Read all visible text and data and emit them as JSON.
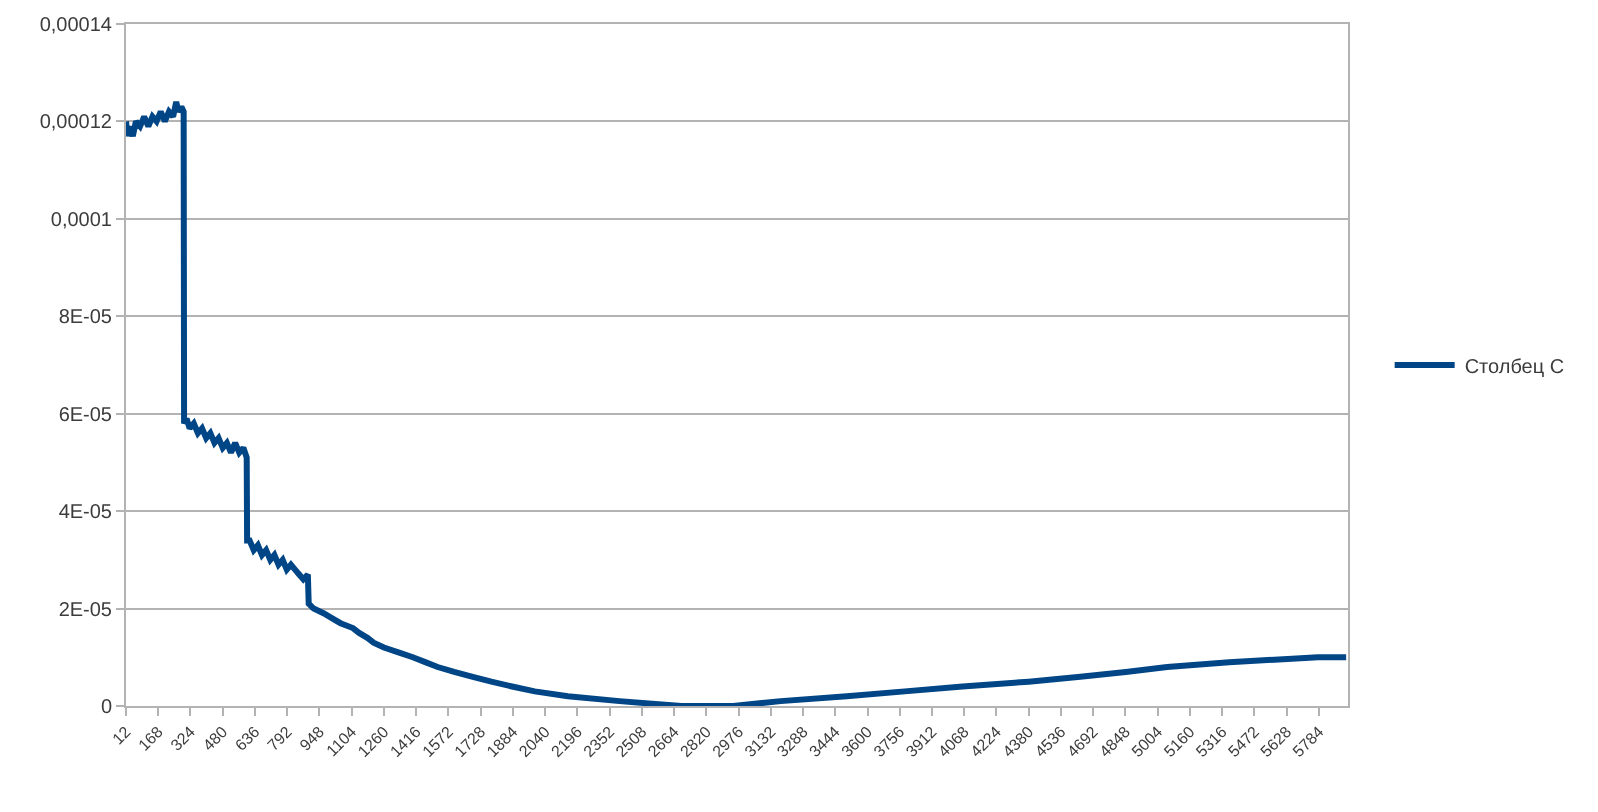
{
  "chart_data": {
    "type": "line",
    "x": [
      12,
      20,
      30,
      45,
      60,
      80,
      100,
      120,
      140,
      160,
      180,
      200,
      220,
      240,
      255,
      265,
      280,
      291,
      293,
      305,
      320,
      340,
      360,
      380,
      400,
      420,
      440,
      460,
      480,
      500,
      520,
      540,
      560,
      580,
      596,
      598,
      610,
      630,
      650,
      670,
      690,
      710,
      730,
      750,
      770,
      790,
      810,
      830,
      850,
      870,
      892,
      896,
      920,
      970,
      1010,
      1050,
      1110,
      1140,
      1180,
      1210,
      1260,
      1330,
      1400,
      1460,
      1520,
      1600,
      1690,
      1780,
      1880,
      1990,
      2150,
      2400,
      2700,
      2950,
      3180,
      3500,
      3780,
      4060,
      4380,
      4630,
      4850,
      5050,
      5350,
      5780,
      5916
    ],
    "series": [
      {
        "name": "Столбец C",
        "color": "#004586",
        "values": [
          0.00012,
          0.000117,
          0.000119,
          0.000117,
          0.00012,
          0.000119,
          0.000121,
          0.000119,
          0.000121,
          0.00012,
          0.000122,
          0.00012,
          0.000122,
          0.000121,
          0.000124,
          0.000122,
          0.000123,
          0.000122,
          5.8e-05,
          5.9e-05,
          5.7e-05,
          5.8e-05,
          5.6e-05,
          5.7e-05,
          5.5e-05,
          5.6e-05,
          5.4e-05,
          5.5e-05,
          5.3e-05,
          5.4e-05,
          5.2e-05,
          5.4e-05,
          5.2e-05,
          5.3e-05,
          5.1e-05,
          3.4e-05,
          3.4e-05,
          3.2e-05,
          3.3e-05,
          3.1e-05,
          3.2e-05,
          3e-05,
          3.1e-05,
          2.9e-05,
          3e-05,
          2.8e-05,
          2.9e-05,
          2.8e-05,
          2.7e-05,
          2.6e-05,
          2.7e-05,
          2.1e-05,
          2e-05,
          1.9e-05,
          1.8e-05,
          1.7e-05,
          1.6e-05,
          1.5e-05,
          1.4e-05,
          1.3e-05,
          1.2e-05,
          1.1e-05,
          1e-05,
          9e-06,
          8e-06,
          7e-06,
          6e-06,
          5e-06,
          4e-06,
          3e-06,
          2e-06,
          1e-06,
          0,
          0,
          1e-06,
          2e-06,
          3e-06,
          4e-06,
          5e-06,
          6e-06,
          7e-06,
          8e-06,
          9e-06,
          1e-05,
          1e-05
        ]
      }
    ],
    "xlim": [
      12,
      5925
    ],
    "xticks": [
      12,
      168,
      324,
      480,
      636,
      792,
      948,
      1104,
      1260,
      1416,
      1572,
      1728,
      1884,
      2040,
      2196,
      2352,
      2508,
      2664,
      2820,
      2976,
      3132,
      3288,
      3444,
      3600,
      3756,
      3912,
      4068,
      4224,
      4380,
      4536,
      4692,
      4848,
      5004,
      5160,
      5316,
      5472,
      5628,
      5784
    ],
    "ylim": [
      0,
      0.00014
    ],
    "yticks": [
      0,
      {
        "value": 2e-05,
        "label": "2E-05"
      },
      {
        "value": 4e-05,
        "label": "4E-05"
      },
      {
        "value": 6e-05,
        "label": "6E-05"
      },
      {
        "value": 8e-05,
        "label": "8E-05"
      },
      {
        "value": 0.0001,
        "label": "0,0001"
      },
      {
        "value": 0.00012,
        "label": "0,00012"
      },
      {
        "value": 0.00014,
        "label": "0,00014"
      }
    ],
    "grid": "y",
    "legend": "right"
  }
}
